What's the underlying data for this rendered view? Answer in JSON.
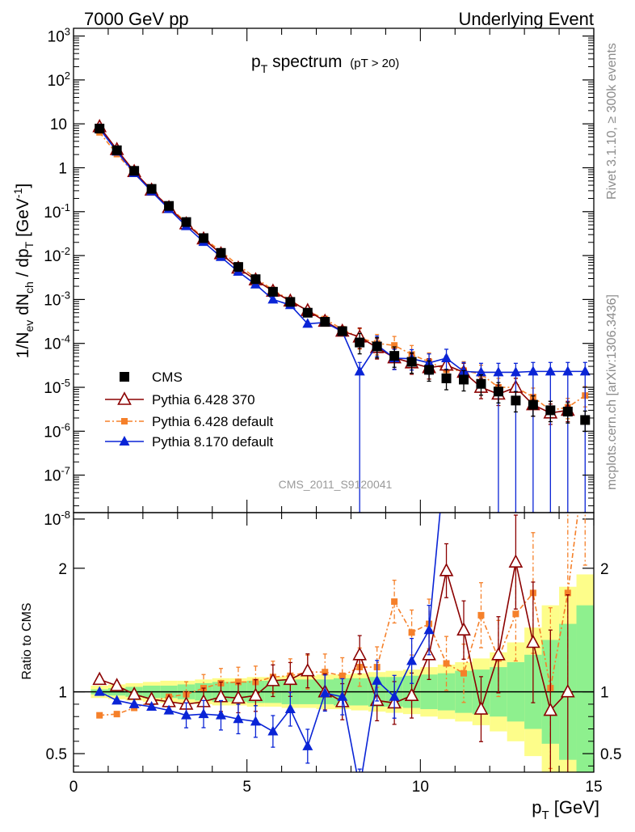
{
  "header": {
    "left": "7000 GeV pp",
    "right": "Underlying Event"
  },
  "side_labels": {
    "rivet": "Rivet 3.1.10, ≥ 300k events",
    "mcplots": "mcplots.cern.ch [arXiv:1306.3436]"
  },
  "watermark": "CMS_2011_S9120041",
  "plot_title": {
    "main_sym": "p",
    "main_sub": "T",
    "main_rest": " spectrum",
    "cut": "(pT > 20)"
  },
  "axes": {
    "top_ylabel": "1/N_ev dN_ch / dp_T [GeV^-1]",
    "bottom_ylabel": "Ratio to CMS",
    "xlabel": "p_T [GeV]"
  },
  "colors": {
    "cms": "#000000",
    "py6_370": "#8b0000",
    "py6_default": "#f5802a",
    "py8": "#0a24d6",
    "band_inner": "#8ef08e",
    "band_outer": "#fdfd8a"
  },
  "chart_data": [
    {
      "type": "scatter",
      "title": "pT spectrum (pT > 20)",
      "xlabel": "pT [GeV]",
      "ylabel": "1/Nev dNch / dpT [GeV^-1]",
      "xlim": [
        0,
        15
      ],
      "ylim": [
        1.4e-08,
        1500
      ],
      "yscale": "log",
      "x_ticks": [
        0,
        5,
        10,
        15
      ],
      "y_ticks": [
        "10^-8",
        "10^-7",
        "10^-6",
        "10^-5",
        "10^-4",
        "10^-3",
        "10^-2",
        "10^-1",
        "1",
        "10",
        "10^2",
        "10^3"
      ],
      "legend_position": "bottom-left",
      "x": [
        0.75,
        1.25,
        1.75,
        2.25,
        2.75,
        3.25,
        3.75,
        4.25,
        4.75,
        5.25,
        5.75,
        6.25,
        6.75,
        7.25,
        7.75,
        8.25,
        8.75,
        9.25,
        9.75,
        10.25,
        10.75,
        11.25,
        11.75,
        12.25,
        12.75,
        13.25,
        13.75,
        14.25,
        14.75
      ],
      "series": [
        {
          "name": "CMS",
          "marker": "square",
          "values": [
            7.8,
            2.5,
            0.85,
            0.33,
            0.135,
            0.058,
            0.025,
            0.0115,
            0.0055,
            0.0029,
            0.0015,
            0.00088,
            0.0005,
            0.00031,
            0.00019,
            0.000105,
            8.5e-05,
            5.2e-05,
            3.8e-05,
            2.5e-05,
            1.6e-05,
            1.5e-05,
            1.2e-05,
            8e-06,
            5e-06,
            4e-06,
            3e-06,
            2.8e-06,
            1.8e-06
          ]
        },
        {
          "name": "Pythia 6.428 370",
          "marker": "open-triangle",
          "values": [
            8.6,
            2.6,
            0.82,
            0.31,
            0.124,
            0.053,
            0.024,
            0.011,
            0.0052,
            0.0028,
            0.00155,
            0.00092,
            0.00056,
            0.00032,
            0.00019,
            0.00014,
            8e-05,
            4.7e-05,
            3.6e-05,
            2.8e-05,
            3.2e-05,
            2.2e-05,
            1e-05,
            7e-06,
            1e-05,
            4e-06,
            2.6e-06,
            3e-06,
            null
          ]
        },
        {
          "name": "Pythia 6.428 default",
          "marker": "small-square",
          "values": [
            6.4,
            2.05,
            0.74,
            0.3,
            0.13,
            0.057,
            0.025,
            0.0125,
            0.006,
            0.0031,
            0.00165,
            0.00096,
            0.00055,
            0.00036,
            0.00021,
            0.000135,
            0.0001,
            9e-05,
            5.6e-05,
            3.8e-05,
            2.5e-05,
            2.4e-05,
            2e-05,
            1e-05,
            1e-05,
            6e-06,
            3e-06,
            3.5e-06,
            6.5e-06
          ]
        },
        {
          "name": "Pythia 8.170 default",
          "marker": "triangle",
          "values": [
            7.8,
            2.35,
            0.76,
            0.29,
            0.115,
            0.047,
            0.0205,
            0.0093,
            0.0043,
            0.0022,
            0.001,
            0.00075,
            0.00028,
            0.0003,
            0.000185,
            2.3e-05,
            9.2e-05,
            4.6e-05,
            4.5e-05,
            3.6e-05,
            4.6e-05,
            2.3e-05,
            2.2e-05,
            2.2e-05,
            2.2e-05,
            2.3e-05,
            2.3e-05,
            2.3e-05,
            2.3e-05
          ]
        }
      ]
    },
    {
      "type": "line",
      "ylabel": "Ratio to CMS",
      "xlabel": "pT [GeV]",
      "xlim": [
        0,
        15
      ],
      "ylim": [
        0.35,
        2.45
      ],
      "x_ticks": [
        0,
        5,
        10,
        15
      ],
      "y_ticks": [
        0.5,
        1,
        2
      ],
      "reference_line": 1,
      "x": [
        0.75,
        1.25,
        1.75,
        2.25,
        2.75,
        3.25,
        3.75,
        4.25,
        4.75,
        5.25,
        5.75,
        6.25,
        6.75,
        7.25,
        7.75,
        8.25,
        8.75,
        9.25,
        9.75,
        10.25,
        10.75,
        11.25,
        11.75,
        12.25,
        12.75,
        13.25,
        13.75,
        14.25,
        14.75
      ],
      "band_inner_halfwidth": [
        0.02,
        0.03,
        0.04,
        0.05,
        0.05,
        0.06,
        0.07,
        0.08,
        0.08,
        0.09,
        0.09,
        0.1,
        0.1,
        0.1,
        0.11,
        0.11,
        0.12,
        0.12,
        0.13,
        0.14,
        0.15,
        0.17,
        0.18,
        0.2,
        0.24,
        0.3,
        0.42,
        0.55,
        0.7
      ],
      "band_outer_halfwidth": [
        0.05,
        0.06,
        0.07,
        0.08,
        0.09,
        0.09,
        0.1,
        0.11,
        0.11,
        0.12,
        0.12,
        0.13,
        0.13,
        0.14,
        0.14,
        0.15,
        0.16,
        0.17,
        0.18,
        0.2,
        0.22,
        0.24,
        0.27,
        0.32,
        0.4,
        0.52,
        0.7,
        0.85,
        0.95
      ],
      "series": [
        {
          "name": "Pythia 6.428 370",
          "values": [
            1.1,
            1.05,
            0.98,
            0.94,
            0.92,
            0.9,
            0.92,
            0.96,
            0.95,
            0.97,
            1.09,
            1.1,
            1.17,
            1.0,
            0.92,
            1.3,
            0.93,
            0.91,
            0.97,
            1.3,
            1.98,
            1.5,
            0.86,
            1.3,
            2.05,
            1.4,
            0.85,
            1.0,
            null
          ]
        },
        {
          "name": "Pythia 6.428 default",
          "values": [
            0.81,
            0.82,
            0.87,
            0.92,
            0.96,
            0.98,
            1.03,
            1.07,
            1.08,
            1.08,
            1.12,
            1.13,
            1.16,
            1.16,
            1.13,
            1.2,
            1.2,
            1.73,
            1.48,
            1.55,
            1.23,
            1.15,
            1.62,
            1.27,
            1.63,
            1.8,
            1.03,
            1.8,
            2.9
          ]
        },
        {
          "name": "Pythia 8.170 default",
          "values": [
            1.0,
            0.93,
            0.9,
            0.88,
            0.85,
            0.81,
            0.82,
            0.81,
            0.78,
            0.76,
            0.68,
            0.86,
            0.56,
            0.99,
            0.96,
            0.22,
            1.09,
            0.96,
            1.25,
            1.5,
            3.0,
            null,
            null,
            null,
            null,
            null,
            null,
            null,
            null
          ]
        }
      ]
    }
  ]
}
